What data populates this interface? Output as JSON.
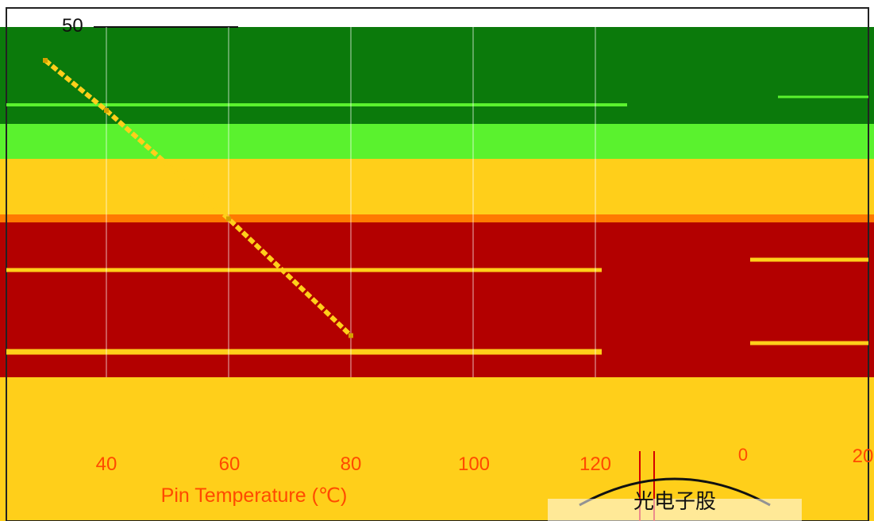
{
  "chart_data": {
    "type": "line",
    "title": "",
    "xlabel": "Pin Temperature (℃)",
    "ylabel": "",
    "xlim": [
      40,
      200
    ],
    "x_ticks": [
      "40",
      "60",
      "80",
      "100",
      "120",
      "0",
      "20"
    ],
    "y_ticks_visible": [
      "50"
    ],
    "grid": true,
    "series": [
      {
        "x": [
          30,
          40,
          60,
          80
        ],
        "y": [
          46,
          40,
          27,
          13
        ]
      }
    ]
  },
  "overlay": {
    "stamp_text": "光电子股"
  },
  "colors": {
    "green_dark": "#0b7a0b",
    "green_bright": "#5af22e",
    "yellow": "#ffcf1a",
    "orange": "#ff7a00",
    "red": "#b30000",
    "label": "#ff4a00"
  }
}
